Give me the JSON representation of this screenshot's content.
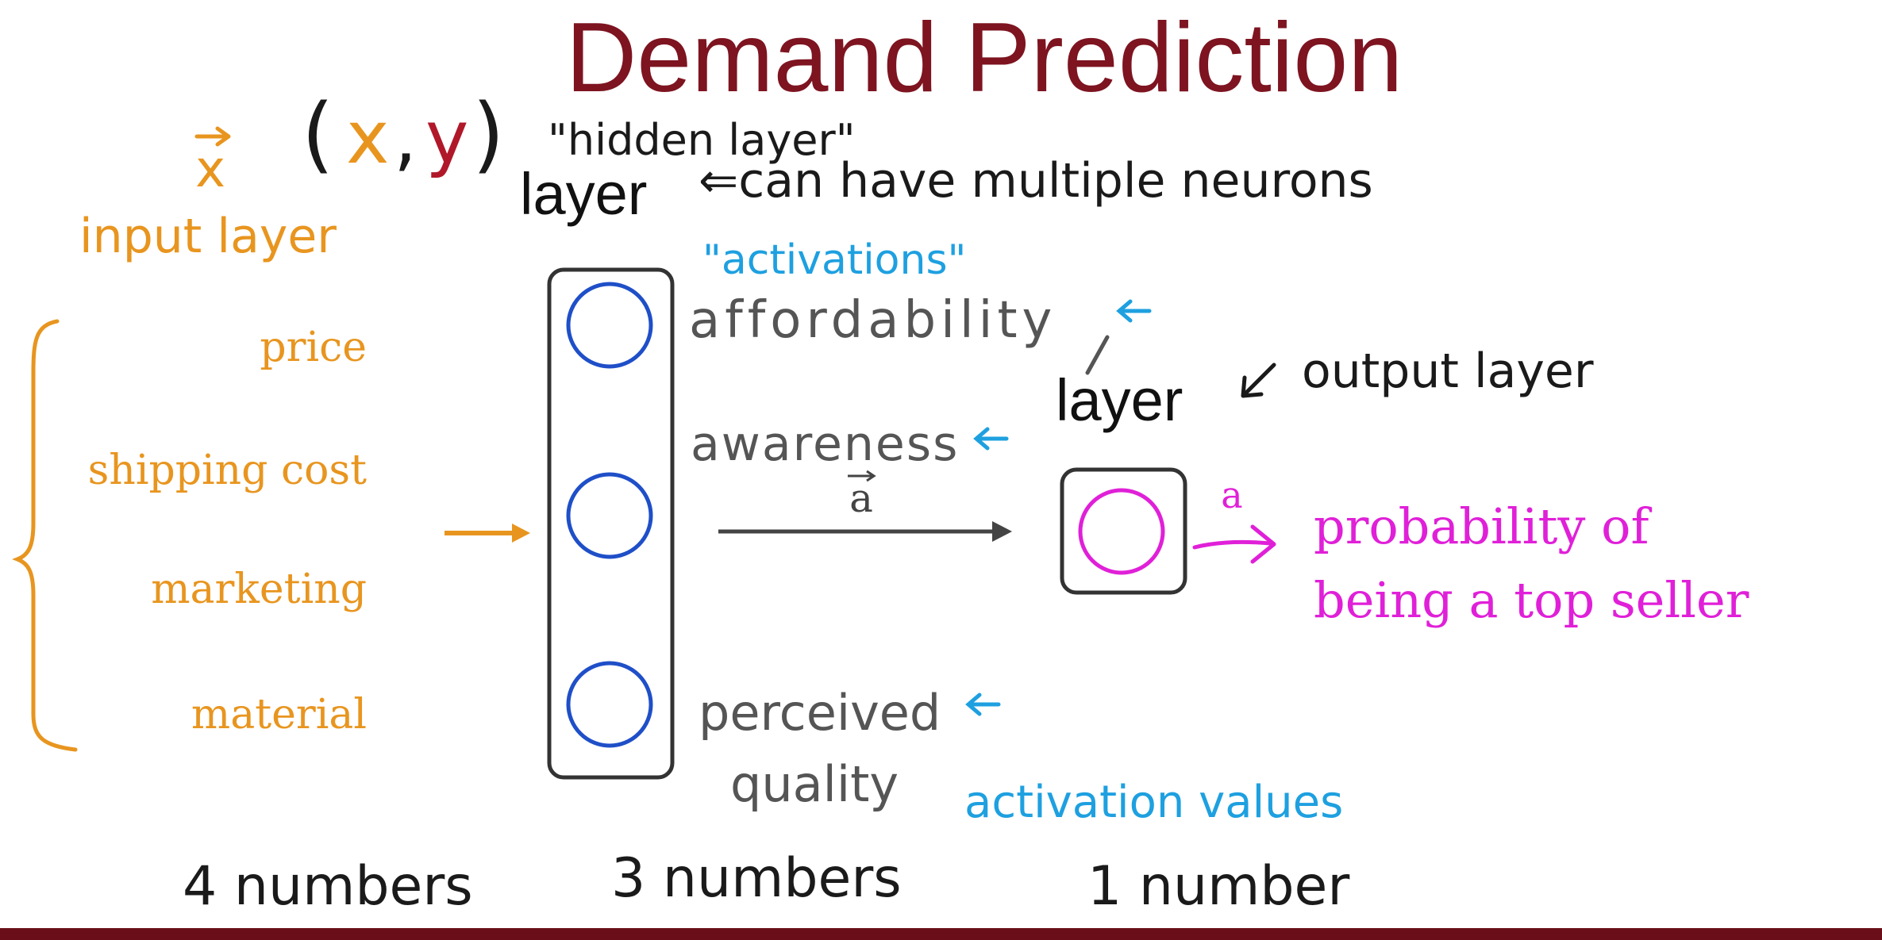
{
  "title": "Demand Prediction",
  "notation": {
    "x_vector": "x",
    "pair_open": "(",
    "pair_x": "x",
    "pair_comma": ",",
    "pair_y": "y",
    "pair_close": ")"
  },
  "input": {
    "label": "input layer",
    "features": [
      "price",
      "shipping cost",
      "marketing",
      "material"
    ],
    "count": "4 numbers"
  },
  "hidden": {
    "quote": "\"hidden layer\"",
    "layer_word": "layer",
    "note": "⇐can have multiple neurons",
    "activations_quote": "\"activations\"",
    "neurons": [
      "affordability",
      "awareness",
      "perceived",
      "quality"
    ],
    "vector_label": "a",
    "activation_values": "activation values",
    "count": "3 numbers"
  },
  "output": {
    "layer_word": "layer",
    "note": "output layer",
    "arrow_label": "a",
    "result_line1": "probability of",
    "result_line2": "being a top seller",
    "count": "1 number"
  },
  "colors": {
    "title": "#7d1420",
    "orange": "#e8951f",
    "blue_neuron": "#1f4fc8",
    "blue_note": "#1ea0e0",
    "magenta": "#e020d8",
    "dark": "#1a1a1a",
    "gray": "#555555",
    "bottom_bar": "#6a0f1a"
  }
}
